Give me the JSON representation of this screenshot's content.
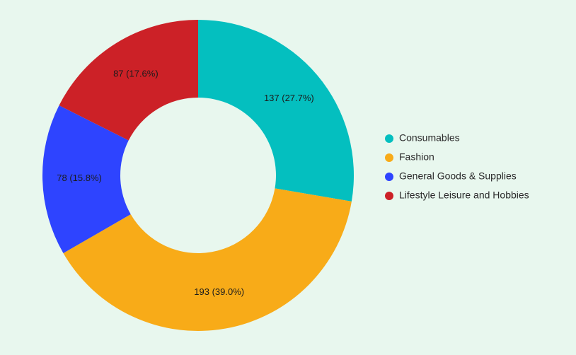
{
  "chart_data": {
    "type": "pie",
    "variant": "donut",
    "title": "",
    "categories": [
      "Consumables",
      "Fashion",
      "General Goods & Supplies",
      "Lifestyle Leisure and Hobbies"
    ],
    "values": [
      137,
      193,
      78,
      87
    ],
    "labels": [
      "137 (27.7%)",
      "193 (39.0%)",
      "78 (15.8%)",
      "87 (17.6%)"
    ],
    "colors": [
      "#04bfbf",
      "#f8ab18",
      "#2e44ff",
      "#cc2127"
    ],
    "background": "#e8f7ee",
    "legend_position": "right"
  }
}
